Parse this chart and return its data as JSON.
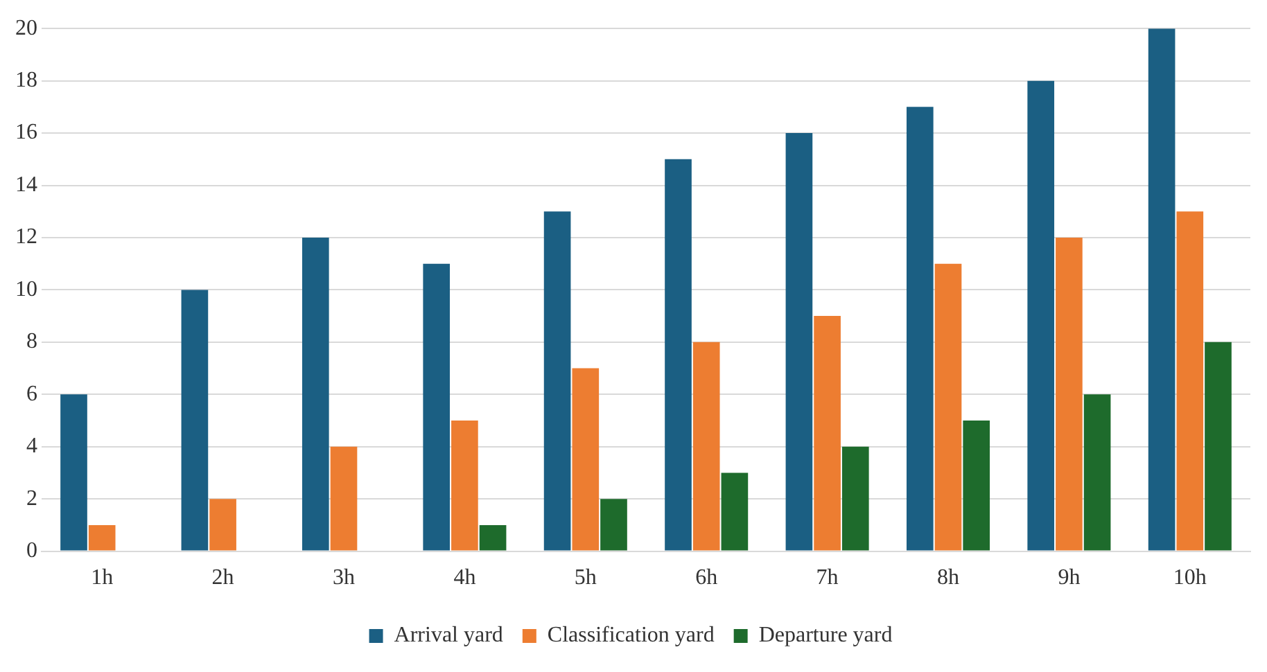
{
  "chart_data": {
    "type": "bar",
    "categories": [
      "1h",
      "2h",
      "3h",
      "4h",
      "5h",
      "6h",
      "7h",
      "8h",
      "9h",
      "10h"
    ],
    "series": [
      {
        "name": "Arrival yard",
        "color": "#1b5f83",
        "values": [
          6,
          10,
          12,
          11,
          13,
          15,
          16,
          17,
          18,
          20
        ]
      },
      {
        "name": "Classification yard",
        "color": "#ed7d31",
        "values": [
          1,
          2,
          4,
          5,
          7,
          8,
          9,
          11,
          12,
          13
        ]
      },
      {
        "name": "Departure yard",
        "color": "#1e6b2c",
        "values": [
          0,
          0,
          0,
          1,
          2,
          3,
          4,
          5,
          6,
          8
        ]
      }
    ],
    "ylim": [
      0,
      20
    ],
    "yticks": [
      0,
      2,
      4,
      6,
      8,
      10,
      12,
      14,
      16,
      18,
      20
    ],
    "grid": "y",
    "legend": "bottom"
  }
}
